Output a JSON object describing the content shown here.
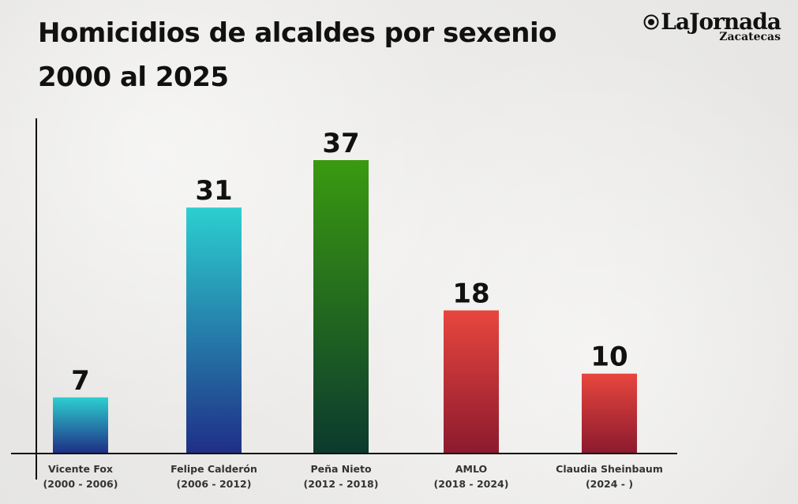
{
  "chart_data": {
    "type": "bar",
    "title_line1": "Homicidios de alcaldes por sexenio",
    "title_line2": "2000 al 2025",
    "categories": [
      {
        "name": "Vicente Fox",
        "period": "(2000 - 2006)"
      },
      {
        "name": "Felipe Calderón",
        "period": "(2006 - 2012)"
      },
      {
        "name": "Peña Nieto",
        "period": "(2012 - 2018)"
      },
      {
        "name": "AMLO",
        "period": "(2018 - 2024)"
      },
      {
        "name": "Claudia Sheinbaum",
        "period": "(2024 - )"
      }
    ],
    "values": [
      7,
      31,
      37,
      18,
      10
    ],
    "bar_colors": [
      [
        "#2ccfd0",
        "#1f2f86"
      ],
      [
        "#2ccfd0",
        "#1f2f86"
      ],
      [
        "#3a9a10",
        "#0c3a2e"
      ],
      [
        "#e8463e",
        "#8c1a2e"
      ],
      [
        "#e8463e",
        "#8c1a2e"
      ]
    ],
    "xlabel": "",
    "ylabel": "",
    "ylim": [
      0,
      37
    ]
  },
  "logo": {
    "brand": "LaJornada",
    "sub": "Zacatecas"
  }
}
